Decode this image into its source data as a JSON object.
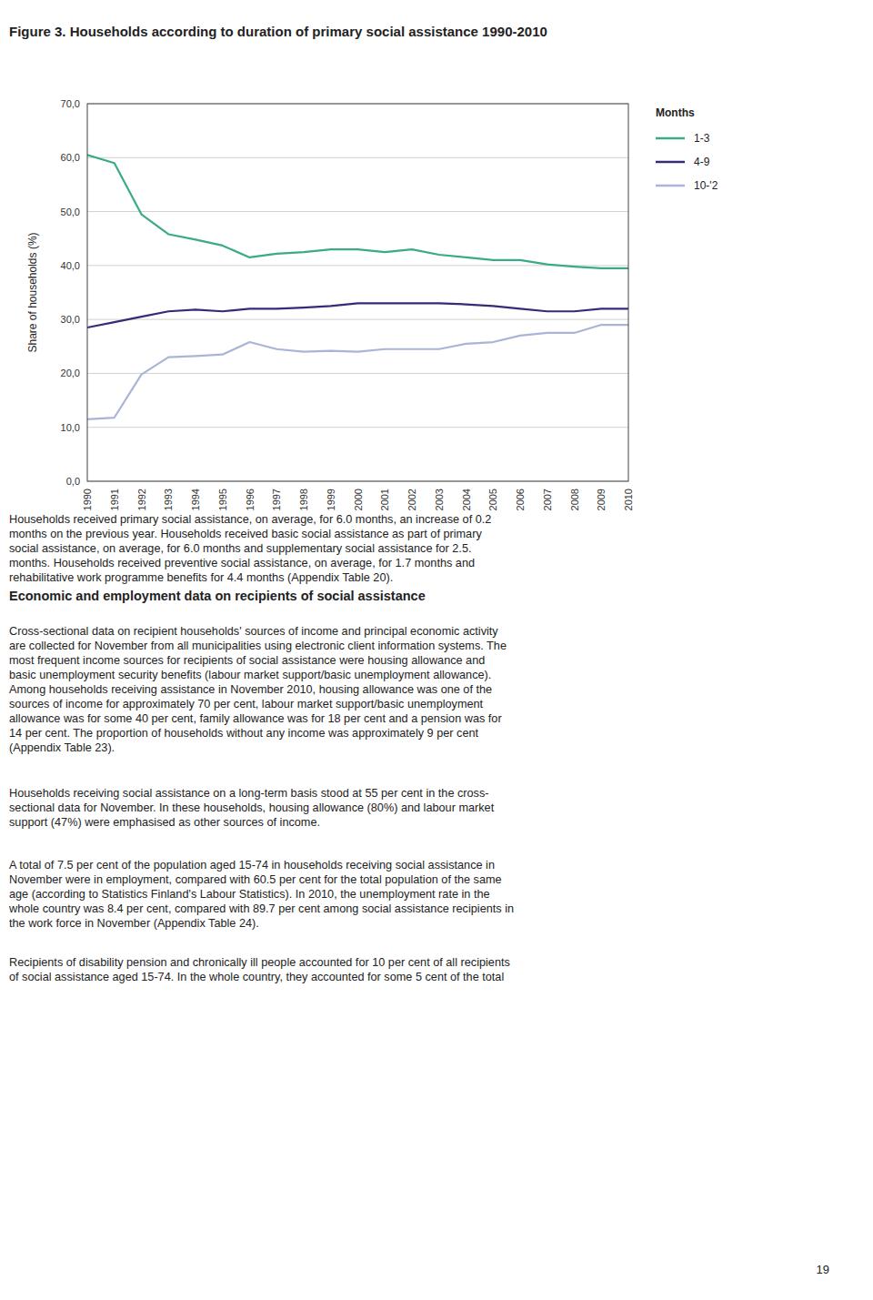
{
  "chart_data": {
    "type": "line",
    "title": "Figure 3. Households according to duration of primary social assistance 1990-2010",
    "ylabel": "Share of households (%)",
    "legend_title": "Months",
    "legend": "right",
    "grid": true,
    "x": [
      1990,
      1991,
      1992,
      1993,
      1994,
      1995,
      1996,
      1997,
      1998,
      1999,
      2000,
      2001,
      2002,
      2003,
      2004,
      2005,
      2006,
      2007,
      2008,
      2009,
      2010
    ],
    "xlim": [
      1990,
      2010
    ],
    "xticks": [
      1990,
      1991,
      1992,
      1993,
      1994,
      1995,
      1996,
      1997,
      1998,
      1999,
      2000,
      2001,
      2002,
      2003,
      2004,
      2005,
      2006,
      2007,
      2008,
      2009,
      2010
    ],
    "ylim": [
      0,
      70
    ],
    "yticks": [
      {
        "value": 0,
        "label": "0,0"
      },
      {
        "value": 10,
        "label": "10,0"
      },
      {
        "value": 20,
        "label": "20,0"
      },
      {
        "value": 30,
        "label": "30,0"
      },
      {
        "value": 40,
        "label": "40,0"
      },
      {
        "value": 50,
        "label": "50,0"
      },
      {
        "value": 60,
        "label": "60,0"
      },
      {
        "value": 70,
        "label": "70,0"
      }
    ],
    "series": [
      {
        "name": "1-3",
        "color": "#3aaa8a",
        "values": [
          60.5,
          59.0,
          49.5,
          45.8,
          44.8,
          43.7,
          41.5,
          42.2,
          42.5,
          43.0,
          43.0,
          42.5,
          43.0,
          42.0,
          41.5,
          41.0,
          41.0,
          40.2,
          39.8,
          39.5,
          39.5
        ]
      },
      {
        "name": "4-9",
        "color": "#3a2878",
        "values": [
          28.5,
          29.5,
          30.5,
          31.5,
          31.8,
          31.5,
          32.0,
          32.0,
          32.2,
          32.5,
          33.0,
          33.0,
          33.0,
          33.0,
          32.8,
          32.5,
          32.0,
          31.5,
          31.5,
          32.0,
          32.0
        ]
      },
      {
        "name": "10-'2",
        "color": "#aab4d8",
        "values": [
          11.5,
          11.8,
          19.8,
          23.0,
          23.2,
          23.5,
          25.8,
          24.5,
          24.0,
          24.2,
          24.0,
          24.5,
          24.5,
          24.5,
          25.5,
          25.8,
          27.0,
          27.5,
          27.5,
          29.0,
          29.0
        ]
      }
    ],
    "annotations": [
      "Households received primary social assistance, on average, for 6.0 months, an increase of 0.2\nmonths on the previous year. Households received basic social assistance as part of primary\nsocial assistance, on average, for 6.0 months and supplementary social assistance for 2.5.\nmonths. Households received preventive social assistance, on average, for 1.7 months and\nrehabilitative work programme benefits for 4.4 months (Appendix Table 20).",
      "Economic and employment data on recipients of social assistance",
      "Cross-sectional data on recipient households' sources of income and principal economic activity\nare collected for November from all municipalities using electronic client information systems. The\nmost frequent income sources for recipients of social assistance were housing allowance and\nbasic unemployment security benefits (labour market support/basic unemployment allowance).\nAmong households receiving assistance in November 2010, housing allowance was one of the\nsources of income for approximately 70 per cent, labour market support/basic unemployment\nallowance was for some 40 per cent, family allowance was for 18 per cent and a pension was for\n14 per cent. The proportion of households without any income was approximately 9 per cent\n(Appendix Table 23).",
      "Households receiving social assistance on a long-term basis stood at 55 per cent in the cross-\nsectional data for November. In these households, housing allowance (80%) and labour market\nsupport (47%) were emphasised as other sources of income.",
      "A total of 7.5 per cent of the population aged 15-74 in households receiving social assistance in\nNovember were in employment, compared with 60.5 per cent for the total population of the same\nage (according to Statistics Finland's Labour Statistics). In 2010, the unemployment rate in the\nwhole country was 8.4 per cent, compared with 89.7 per cent among social assistance recipients in\nthe work force in November (Appendix Table 24).",
      "Recipients of disability pension and chronically ill people accounted for 10 per cent of all recipients\nof social assistance aged 15-74. In the whole country, they accounted for some 5 cent of the total",
      "19"
    ]
  }
}
